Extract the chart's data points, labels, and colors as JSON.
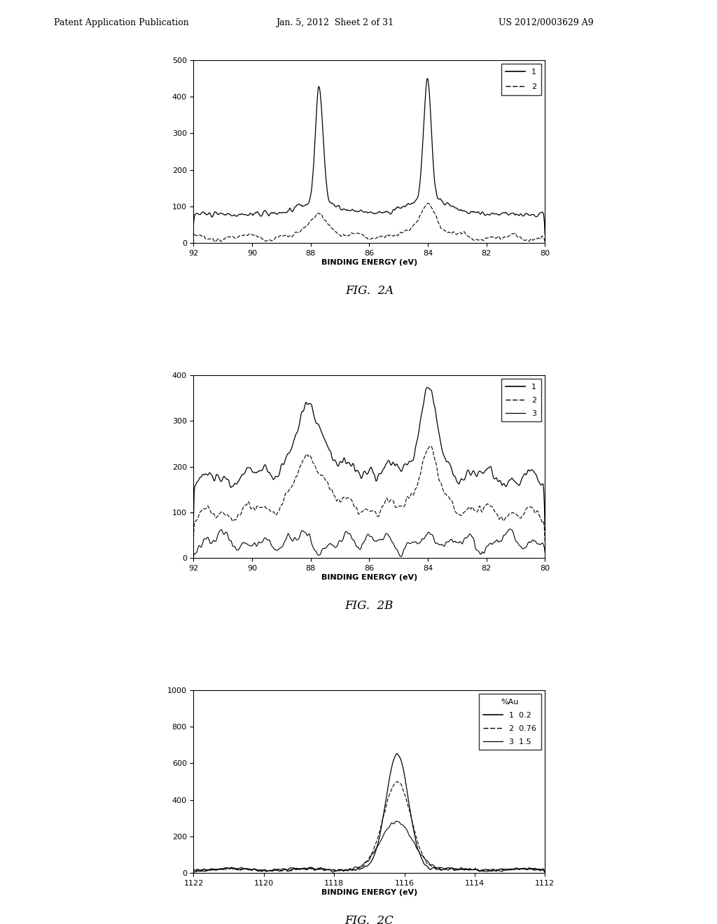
{
  "header_left": "Patent Application Publication",
  "header_mid": "Jan. 5, 2012  Sheet 2 of 31",
  "header_right": "US 2012/0003629 A9",
  "fig2a": {
    "title": "FIG.  2A",
    "xlabel": "BINDING ENERGY (eV)",
    "ylim": [
      0,
      500
    ],
    "yticks": [
      0,
      100,
      200,
      300,
      400,
      500
    ],
    "legend": [
      "1",
      "2"
    ]
  },
  "fig2b": {
    "title": "FIG.  2B",
    "xlabel": "BINDING ENERGY (eV)",
    "ylim": [
      0,
      400
    ],
    "yticks": [
      0,
      100,
      200,
      300,
      400
    ],
    "legend": [
      "1",
      "2",
      "3"
    ]
  },
  "fig2c": {
    "title": "FIG.  2C",
    "xlabel": "BINDING ENERGY (eV)",
    "ylim": [
      0,
      1000
    ],
    "yticks": [
      0,
      200,
      400,
      600,
      800,
      1000
    ],
    "legend_title": "%Au",
    "legend": [
      "1  0.2",
      "2  0.76",
      "3  1.5"
    ]
  },
  "background_color": "#ffffff",
  "font_size_label": 8,
  "font_size_tick": 8,
  "font_size_header": 9,
  "font_size_fig_label": 12
}
